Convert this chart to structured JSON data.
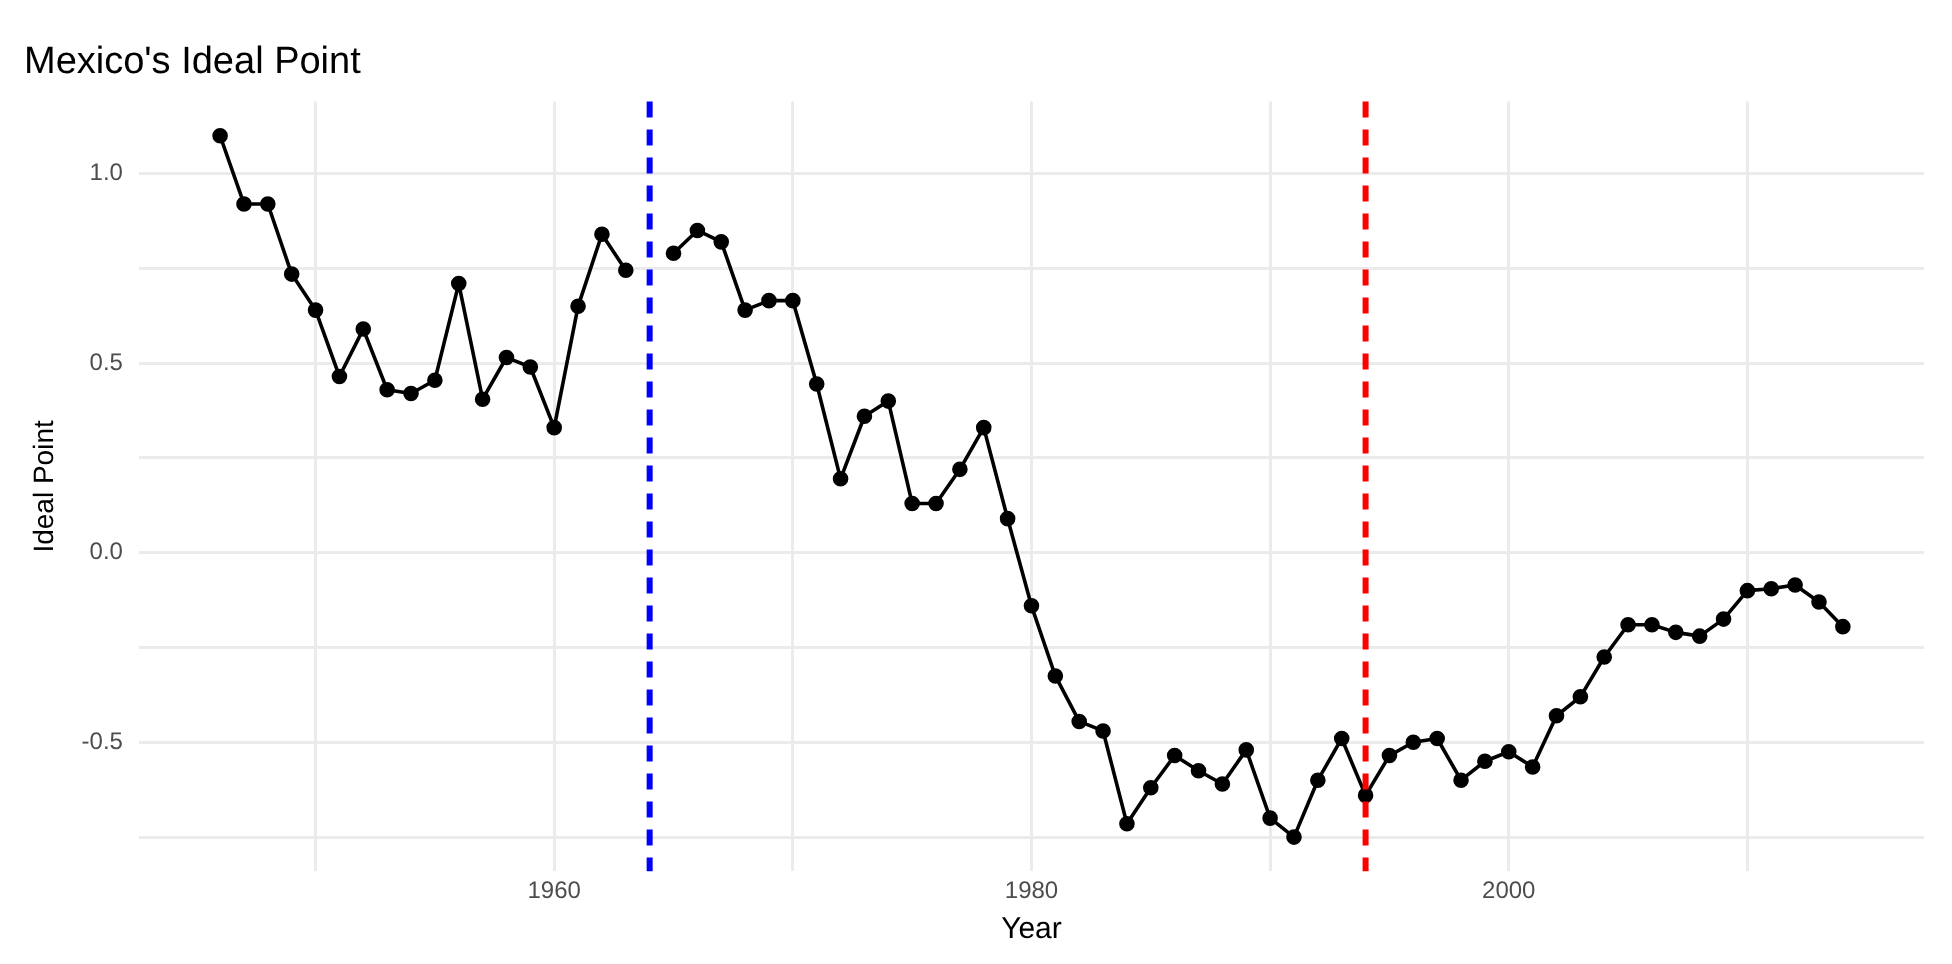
{
  "chart_data": {
    "type": "line",
    "title": "Mexico's Ideal Point",
    "xlabel": "Year",
    "ylabel": "Ideal Point",
    "x": [
      1946,
      1947,
      1948,
      1949,
      1950,
      1951,
      1952,
      1953,
      1954,
      1955,
      1956,
      1957,
      1958,
      1959,
      1960,
      1961,
      1962,
      1963,
      1964,
      1965,
      1966,
      1967,
      1968,
      1969,
      1970,
      1971,
      1972,
      1973,
      1974,
      1975,
      1976,
      1977,
      1978,
      1979,
      1980,
      1981,
      1982,
      1983,
      1984,
      1985,
      1986,
      1987,
      1988,
      1989,
      1990,
      1991,
      1992,
      1993,
      1994,
      1995,
      1996,
      1997,
      1998,
      1999,
      2000,
      2001,
      2002,
      2003,
      2004,
      2005,
      2006,
      2007,
      2008,
      2009,
      2010,
      2011,
      2012,
      2013,
      2014
    ],
    "series": [
      {
        "color": "#000000",
        "values": [
          1.1,
          0.92,
          0.92,
          0.735,
          0.64,
          0.465,
          0.59,
          0.43,
          0.42,
          0.455,
          0.71,
          0.405,
          0.515,
          0.49,
          0.33,
          0.65,
          0.84,
          0.745,
          null,
          0.79,
          0.85,
          0.82,
          0.64,
          0.665,
          0.665,
          0.445,
          0.195,
          0.36,
          0.4,
          0.13,
          0.13,
          0.22,
          0.33,
          0.09,
          -0.14,
          -0.325,
          -0.445,
          -0.47,
          -0.715,
          -0.62,
          -0.535,
          -0.575,
          -0.61,
          -0.52,
          -0.7,
          -0.75,
          -0.6,
          -0.49,
          -0.64,
          -0.535,
          -0.5,
          -0.49,
          -0.6,
          -0.55,
          -0.525,
          -0.565,
          -0.43,
          -0.38,
          -0.275,
          -0.19,
          -0.19,
          -0.21,
          -0.22,
          -0.175,
          -0.1,
          -0.095,
          -0.085,
          -0.13,
          -0.195
        ]
      }
    ],
    "xlim": [
      1942.6,
      2017.4
    ],
    "xticks": [
      {
        "value": 1950,
        "label": null
      },
      1960,
      {
        "value": 1970,
        "label": null
      },
      1980,
      {
        "value": 1990,
        "label": null
      },
      2000,
      {
        "value": 2010,
        "label": null
      }
    ],
    "ylim": [
      -0.84,
      1.19
    ],
    "yticks": [
      {
        "value": -0.75,
        "label": null
      },
      {
        "value": -0.5,
        "label": "-0.5"
      },
      {
        "value": -0.25,
        "label": null
      },
      {
        "value": 0,
        "label": "0.0"
      },
      {
        "value": 0.25,
        "label": null
      },
      {
        "value": 0.5,
        "label": "0.5"
      },
      {
        "value": 0.75,
        "label": null
      },
      {
        "value": 1,
        "label": "1.0"
      }
    ],
    "ref_lines": [
      {
        "axis": "x",
        "value": 1964,
        "color": "#0000ff",
        "line_style": "dashed"
      },
      {
        "axis": "x",
        "value": 1994,
        "color": "#ff0000",
        "line_style": "dashed"
      }
    ],
    "grid": true,
    "marker": "circle",
    "line_style": "solid",
    "legend": false
  }
}
